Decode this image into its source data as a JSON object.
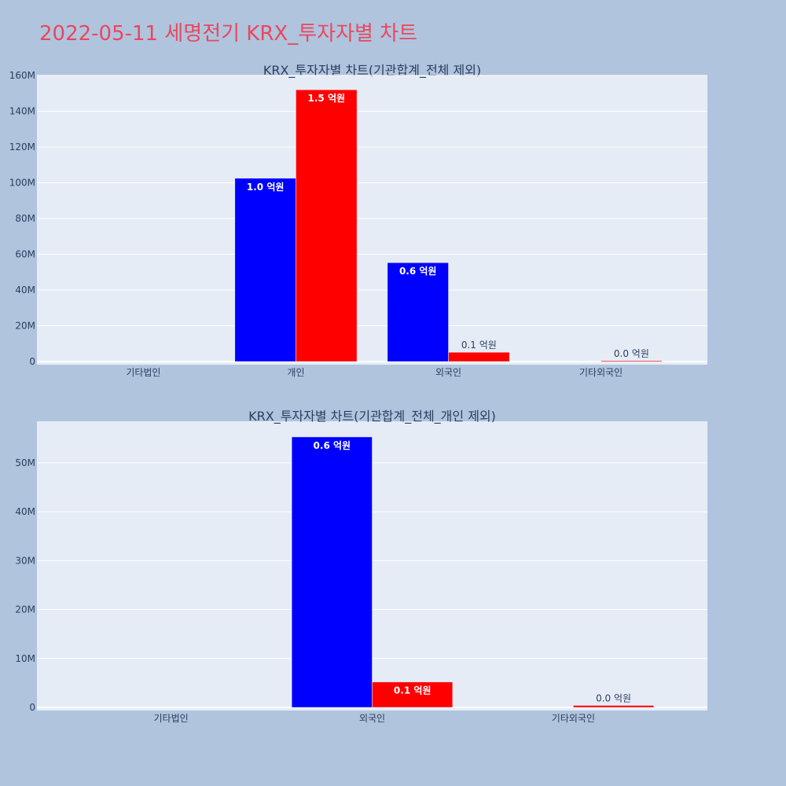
{
  "page": {
    "title": "2022-05-11 세명전기 KRX_투자자별 차트"
  },
  "colors": {
    "background": "#b0c4de",
    "plot_bg": "#e5ecf6",
    "series_a": "#0000ff",
    "series_b": "#ff0000",
    "title": "#e8485e"
  },
  "chart_data": [
    {
      "type": "bar",
      "title": "KRX_투자자별 차트(기관합계_전체 제외)",
      "categories": [
        "기타법인",
        "개인",
        "외국인",
        "기타외국인"
      ],
      "ylim": [
        0,
        160000000
      ],
      "yticks": [
        0,
        20000000,
        40000000,
        60000000,
        80000000,
        100000000,
        120000000,
        140000000,
        160000000
      ],
      "ytick_labels": [
        "0",
        "20M",
        "40M",
        "60M",
        "80M",
        "100M",
        "120M",
        "140M",
        "160M"
      ],
      "grid": true,
      "series": [
        {
          "color": "#0000ff",
          "values": [
            0,
            102500000,
            55300000,
            0
          ],
          "labels": [
            "",
            "1.0 억원",
            "0.6 억원",
            ""
          ]
        },
        {
          "color": "#ff0000",
          "values": [
            0,
            152000000,
            5200000,
            400000
          ],
          "labels": [
            "",
            "1.5 억원",
            "0.1 억원",
            "0.0 억원"
          ]
        }
      ]
    },
    {
      "type": "bar",
      "title": "KRX_투자자별 차트(기관합계_전체_개인 제외)",
      "categories": [
        "기타법인",
        "외국인",
        "기타외국인"
      ],
      "ylim": [
        0,
        58500000
      ],
      "yticks": [
        0,
        10000000,
        20000000,
        30000000,
        40000000,
        50000000
      ],
      "ytick_labels": [
        "0",
        "10M",
        "20M",
        "30M",
        "40M",
        "50M"
      ],
      "grid": true,
      "series": [
        {
          "color": "#0000ff",
          "values": [
            0,
            55300000,
            0
          ],
          "labels": [
            "",
            "0.6 억원",
            ""
          ]
        },
        {
          "color": "#ff0000",
          "values": [
            0,
            5200000,
            400000
          ],
          "labels": [
            "",
            "0.1 억원",
            "0.0 억원"
          ]
        }
      ]
    }
  ]
}
